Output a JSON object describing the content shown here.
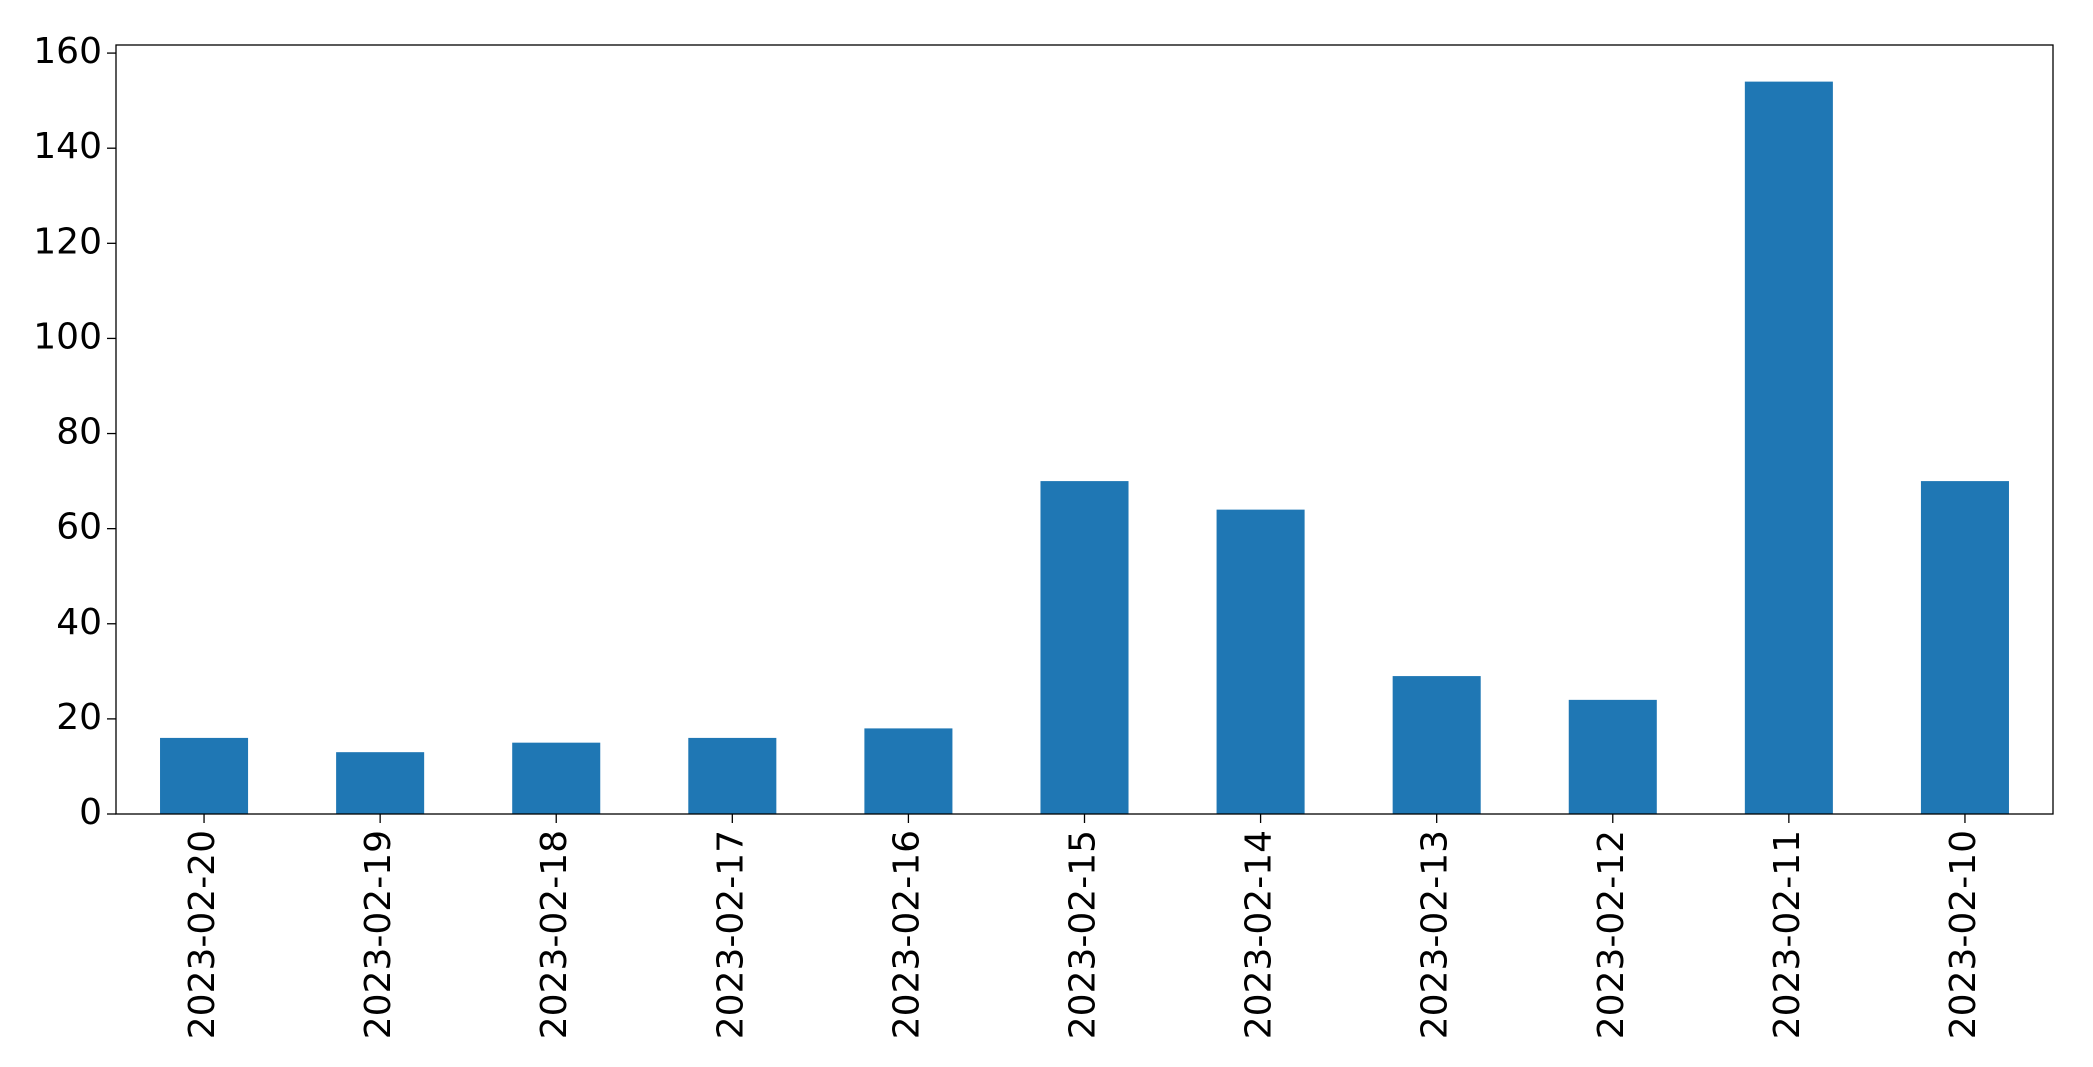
{
  "chart_data": {
    "type": "bar",
    "categories": [
      "2023-02-20",
      "2023-02-19",
      "2023-02-18",
      "2023-02-17",
      "2023-02-16",
      "2023-02-15",
      "2023-02-14",
      "2023-02-13",
      "2023-02-12",
      "2023-02-11",
      "2023-02-10"
    ],
    "values": [
      16,
      13,
      15,
      16,
      18,
      70,
      64,
      29,
      24,
      154,
      70
    ],
    "color": "#1f77b4",
    "ylim": [
      0,
      161.7
    ],
    "yticks": [
      0,
      20,
      40,
      60,
      80,
      100,
      120,
      140,
      160
    ],
    "grid": false
  }
}
